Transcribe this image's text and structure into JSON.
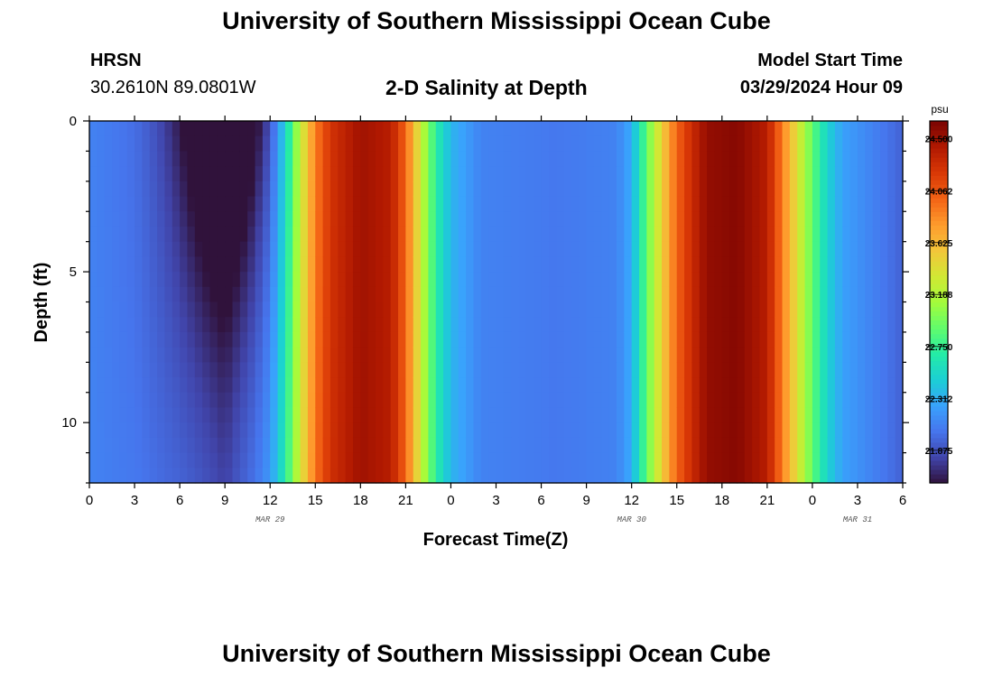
{
  "page": {
    "title_top": "University of Southern Mississippi Ocean Cube",
    "title_bottom": "University of Southern Mississippi Ocean Cube",
    "station": "HRSN",
    "coordinates": "30.2610N  89.0801W",
    "model_start_label": "Model Start Time",
    "model_start_value": "03/29/2024 Hour 09",
    "plot_title": "2-D Salinity at Depth"
  },
  "colors": {
    "background": "#ffffff",
    "colormap": [
      "#30123b",
      "#4145ab",
      "#4675ed",
      "#39a2fc",
      "#1bcfd4",
      "#24eca6",
      "#61fc6c",
      "#a4fc3b",
      "#d1e834",
      "#f3c63a",
      "#fe9b2d",
      "#f36315",
      "#d93806",
      "#b11901",
      "#7a0403"
    ]
  },
  "chart_data": {
    "type": "heatmap",
    "title": "2-D Salinity at Depth",
    "xlabel": "Forecast Time(Z)",
    "ylabel": "Depth (ft)",
    "units": "psu",
    "x_hours_from_mar29_00z": [
      0,
      54
    ],
    "y_depth_ft": [
      0,
      12
    ],
    "x_tick_labels": [
      "0",
      "3",
      "6",
      "9",
      "12",
      "15",
      "18",
      "21",
      "0",
      "3",
      "6",
      "9",
      "12",
      "15",
      "18",
      "21",
      "0",
      "3",
      "6"
    ],
    "y_tick_labels": [
      "0",
      "5",
      "10"
    ],
    "y_tick_values": [
      0,
      5,
      10
    ],
    "date_labels": [
      {
        "text": "MAR 29",
        "hour": 12
      },
      {
        "text": "MAR 30",
        "hour": 36
      },
      {
        "text": "MAR 31",
        "hour": 51
      }
    ],
    "colorbar": {
      "min": 21.6,
      "max": 24.65,
      "tick_labels": [
        "24.500",
        "24.062",
        "23.625",
        "23.188",
        "22.750",
        "22.312",
        "21.875"
      ],
      "tick_values": [
        24.5,
        24.062,
        23.625,
        23.188,
        22.75,
        22.312,
        21.875
      ]
    },
    "salinity_profile_by_hour": [
      {
        "hour": 0,
        "psu": 22.1
      },
      {
        "hour": 3,
        "psu": 22.02
      },
      {
        "hour": 6,
        "psu": 21.85
      },
      {
        "hour": 9,
        "psu": 21.65
      },
      {
        "hour": 11,
        "psu": 21.9
      },
      {
        "hour": 12,
        "psu": 22.1
      },
      {
        "hour": 13,
        "psu": 22.6
      },
      {
        "hour": 14,
        "psu": 23.3
      },
      {
        "hour": 15,
        "psu": 23.9
      },
      {
        "hour": 16,
        "psu": 24.25
      },
      {
        "hour": 18,
        "psu": 24.5
      },
      {
        "hour": 20,
        "psu": 24.4
      },
      {
        "hour": 21,
        "psu": 24.0
      },
      {
        "hour": 22,
        "psu": 23.3
      },
      {
        "hour": 23,
        "psu": 22.7
      },
      {
        "hour": 24,
        "psu": 22.35
      },
      {
        "hour": 26,
        "psu": 22.1
      },
      {
        "hour": 31,
        "psu": 22.05
      },
      {
        "hour": 35,
        "psu": 22.1
      },
      {
        "hour": 36,
        "psu": 22.3
      },
      {
        "hour": 37,
        "psu": 22.9
      },
      {
        "hour": 38,
        "psu": 23.5
      },
      {
        "hour": 39,
        "psu": 24.0
      },
      {
        "hour": 40,
        "psu": 24.3
      },
      {
        "hour": 41,
        "psu": 24.55
      },
      {
        "hour": 43,
        "psu": 24.6
      },
      {
        "hour": 45,
        "psu": 24.4
      },
      {
        "hour": 46,
        "psu": 23.9
      },
      {
        "hour": 47,
        "psu": 23.4
      },
      {
        "hour": 48,
        "psu": 22.9
      },
      {
        "hour": 49,
        "psu": 22.5
      },
      {
        "hour": 50,
        "psu": 22.25
      },
      {
        "hour": 52,
        "psu": 22.1
      },
      {
        "hour": 54,
        "psu": 21.95
      }
    ],
    "fresh_anomaly": {
      "center_hour": 9,
      "surface_drop_psu": 0.55,
      "bottom_rise_psu": 0.15
    }
  }
}
